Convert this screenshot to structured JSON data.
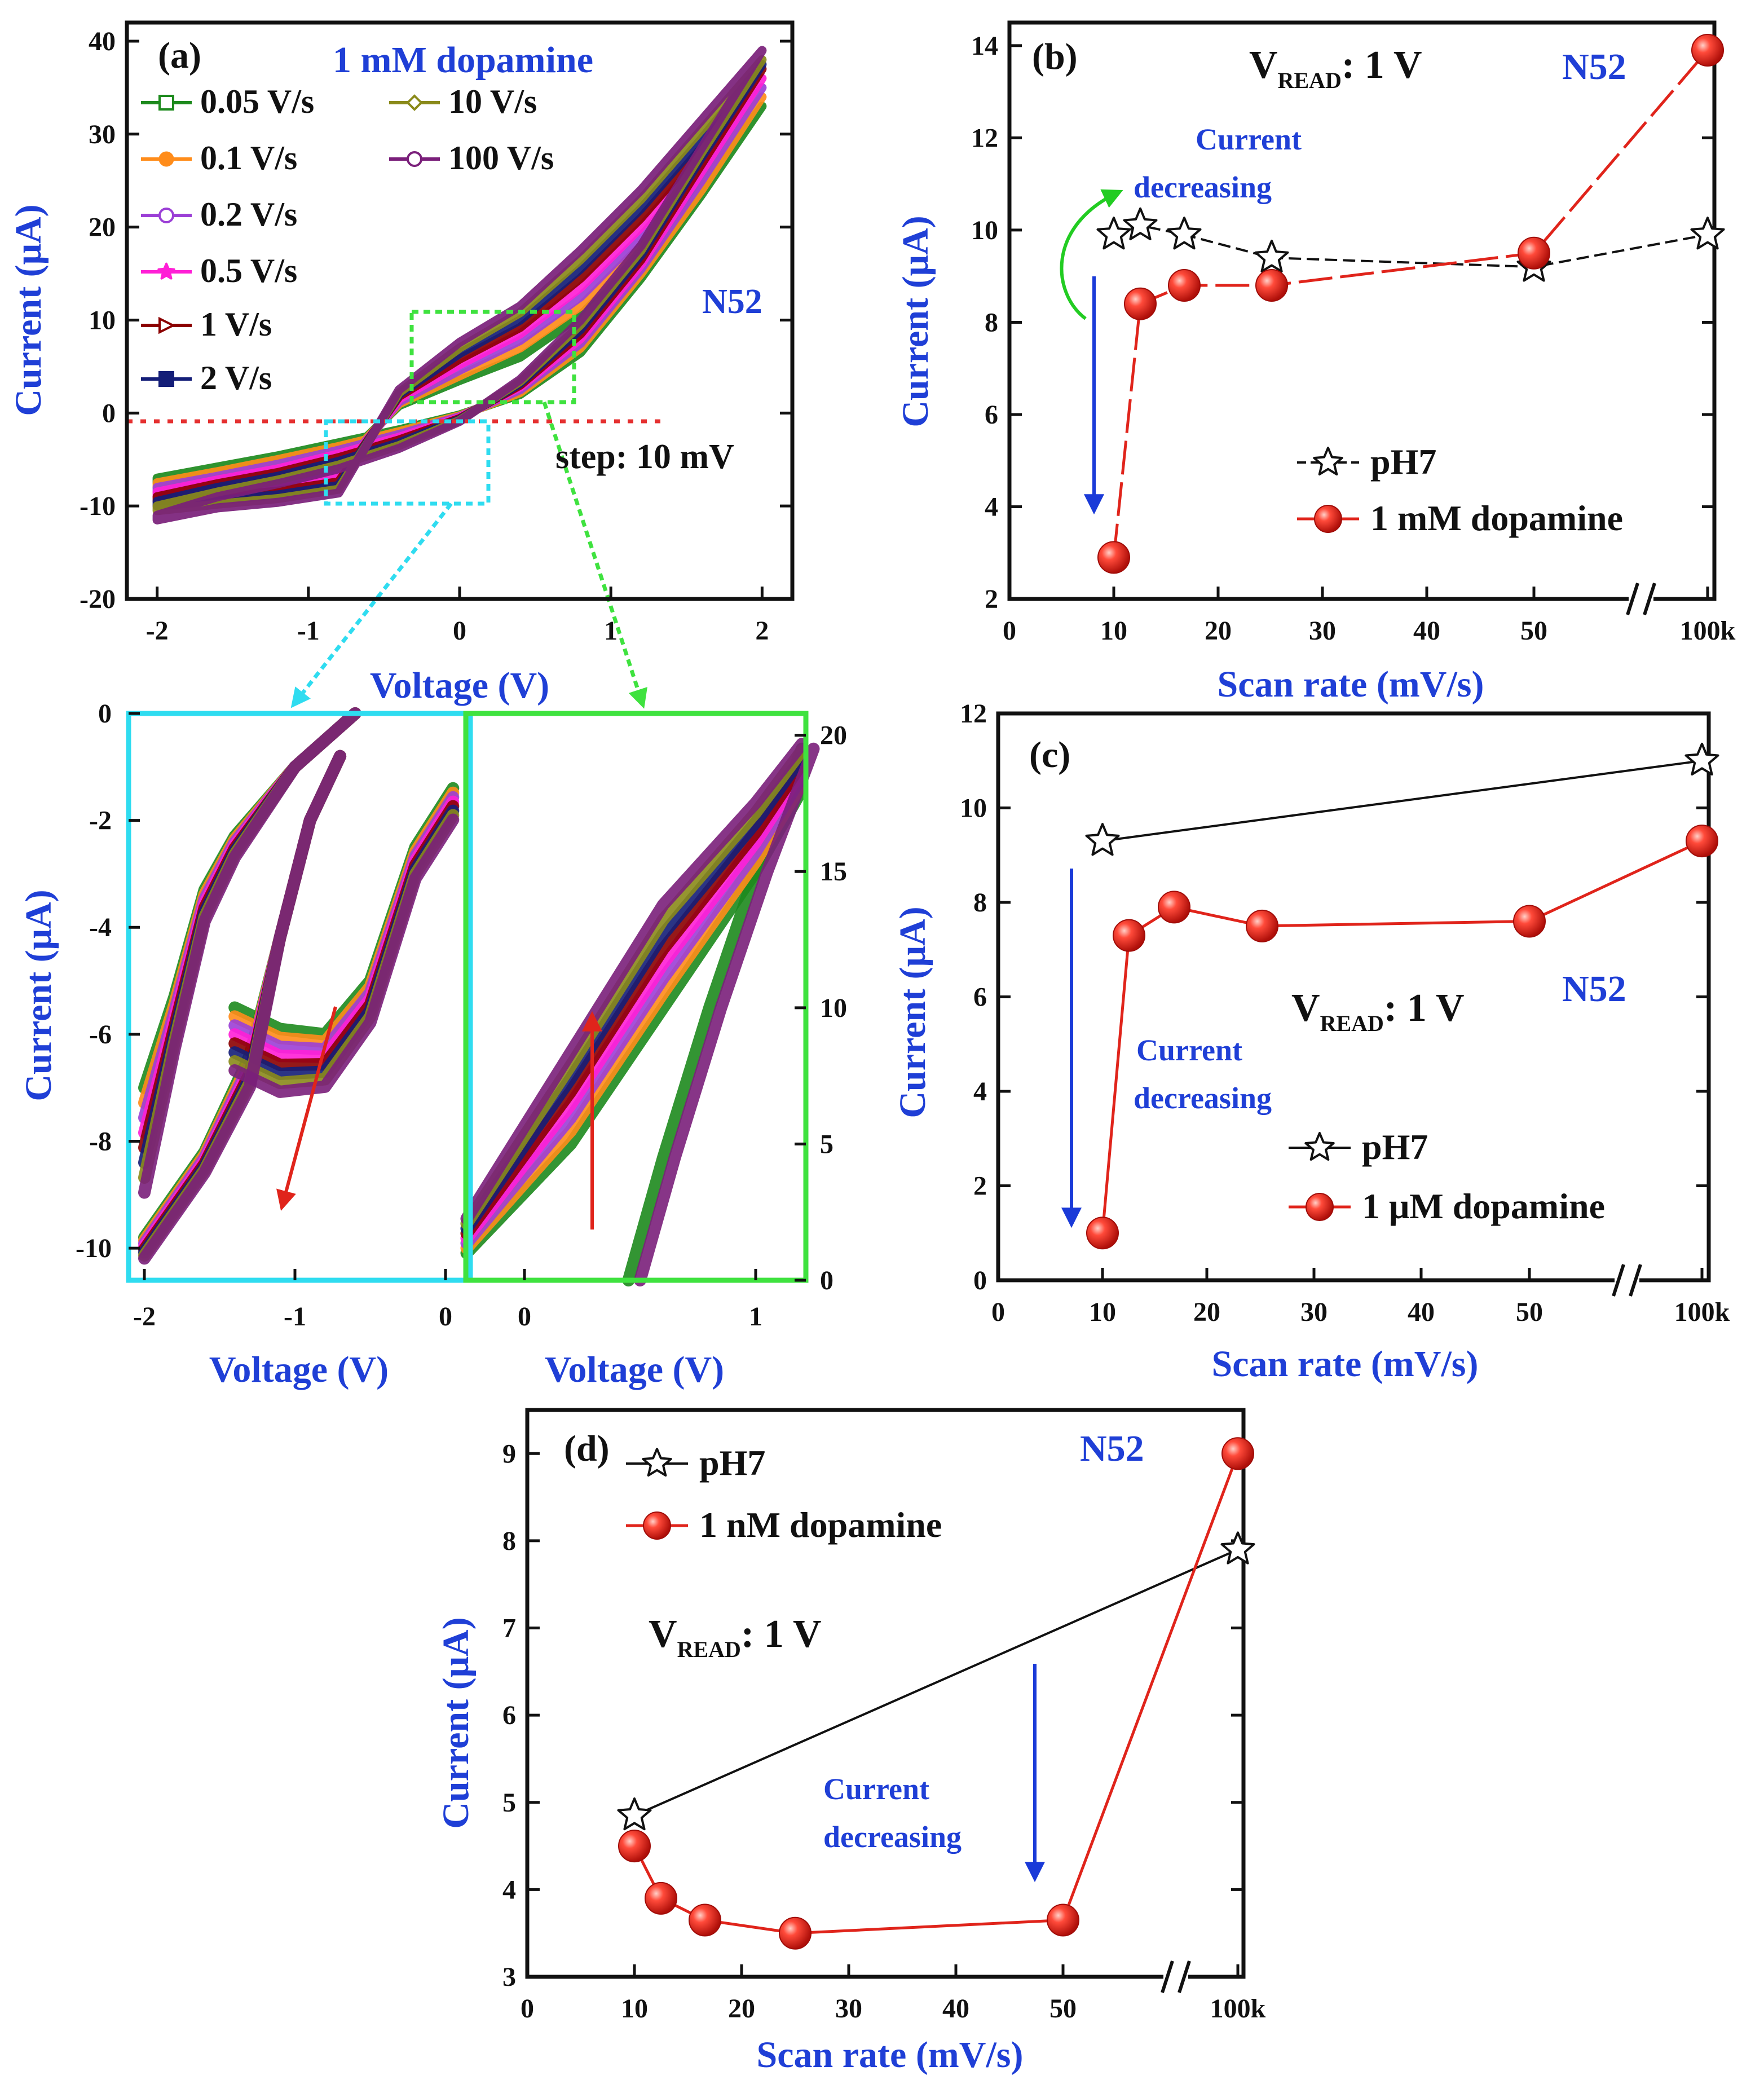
{
  "colors": {
    "axis_label": "#1f3fd6",
    "panel_text": "#1f3fd6",
    "black_series": "#111111",
    "red_series": "#e0241b",
    "arrow_blue": "#1a3ad8",
    "arrow_green": "#22cc22",
    "arrow_red": "#e0241b",
    "zoom_cyan": "#2fdcf0",
    "zoom_green": "#3fe23f",
    "zero_line": "#e53030"
  },
  "panel_a": {
    "label": "(a)",
    "title": "1 mM dopamine",
    "sample": "N52",
    "step": "step: 10 mV",
    "xlabel": "Voltage (V)",
    "ylabel": "Current (μA)",
    "xticks": [
      "-2",
      "-1",
      "0",
      "1",
      "2"
    ],
    "yticks": [
      "-20",
      "-10",
      "0",
      "10",
      "20",
      "30",
      "40"
    ],
    "legend": [
      {
        "name": "0.05 V/s",
        "color": "#1d8a1d",
        "marker": "square"
      },
      {
        "name": "0.1 V/s",
        "color": "#ff8c1a",
        "marker": "circle-filled"
      },
      {
        "name": "0.2 V/s",
        "color": "#9b3fd6",
        "marker": "circle-open"
      },
      {
        "name": "0.5 V/s",
        "color": "#ff1fd6",
        "marker": "star"
      },
      {
        "name": "1 V/s",
        "color": "#8b0000",
        "marker": "triangle"
      },
      {
        "name": "2 V/s",
        "color": "#141e78",
        "marker": "square-filled"
      },
      {
        "name": "10 V/s",
        "color": "#8a8a1a",
        "marker": "diamond"
      },
      {
        "name": "100 V/s",
        "color": "#7a1f7a",
        "marker": "circle-open"
      }
    ]
  },
  "zoom_left": {
    "xlabel": "Voltage (V)",
    "ylabel": "Current (μA)",
    "xticks": [
      "-2",
      "-1",
      "0"
    ],
    "yticks": [
      "0",
      "-2",
      "-4",
      "-6",
      "-8",
      "-10"
    ]
  },
  "zoom_right": {
    "xlabel": "Voltage (V)",
    "xticks": [
      "0",
      "1"
    ],
    "yticks": [
      "0",
      "5",
      "10",
      "15",
      "20"
    ]
  },
  "panel_b": {
    "label": "(b)",
    "vread": {
      "v": "V",
      "sub": "READ",
      "rest": ": 1 V"
    },
    "sample": "N52",
    "annotation": [
      "Current",
      "decreasing"
    ],
    "xlabel": "Scan rate (mV/s)",
    "ylabel": "Current (μA)",
    "xticks": [
      "0",
      "10",
      "20",
      "30",
      "40",
      "50",
      "100k"
    ],
    "yticks": [
      "2",
      "4",
      "6",
      "8",
      "10",
      "12",
      "14"
    ],
    "legend": [
      "pH7",
      "1 mM dopamine"
    ]
  },
  "panel_c": {
    "label": "(c)",
    "vread": {
      "v": "V",
      "sub": "READ",
      "rest": ": 1 V"
    },
    "sample": "N52",
    "annotation": [
      "Current",
      "decreasing"
    ],
    "xlabel": "Scan rate (mV/s)",
    "ylabel": "Current (μA)",
    "xticks": [
      "0",
      "10",
      "20",
      "30",
      "40",
      "50",
      "100k"
    ],
    "yticks": [
      "0",
      "2",
      "4",
      "6",
      "8",
      "10",
      "12"
    ],
    "legend": [
      "pH7",
      "1 μM dopamine"
    ]
  },
  "panel_d": {
    "label": "(d)",
    "vread": {
      "v": "V",
      "sub": "READ",
      "rest": ": 1 V"
    },
    "sample": "N52",
    "annotation": [
      "Current",
      "decreasing"
    ],
    "xlabel": "Scan rate (mV/s)",
    "ylabel": "Current (μA)",
    "xticks": [
      "0",
      "10",
      "20",
      "30",
      "40",
      "50",
      "100k"
    ],
    "yticks": [
      "3",
      "4",
      "5",
      "6",
      "7",
      "8",
      "9"
    ],
    "legend": [
      "pH7",
      "1 nM dopamine"
    ]
  },
  "chart_data": [
    {
      "panel": "a",
      "type": "line",
      "xlabel": "Voltage (V)",
      "ylabel": "Current (μA)",
      "xlim": [
        -2.2,
        2.2
      ],
      "ylim": [
        -20,
        42
      ],
      "series": [
        {
          "name": "0.05 V/s",
          "points": [
            [
              -2,
              -7
            ],
            [
              -1.6,
              -5.8
            ],
            [
              -1.2,
              -4.6
            ],
            [
              -0.8,
              -3.2
            ],
            [
              -0.4,
              -1.8
            ],
            [
              0,
              -0.2
            ],
            [
              0.4,
              2.0
            ],
            [
              0.8,
              6.5
            ],
            [
              1.2,
              14.5
            ],
            [
              1.6,
              23.5
            ],
            [
              2,
              33
            ],
            [
              1.6,
              24.5
            ],
            [
              1.2,
              17
            ],
            [
              0.8,
              10.5
            ],
            [
              0.4,
              6
            ],
            [
              0,
              3.5
            ],
            [
              -0.4,
              0.8
            ],
            [
              -0.8,
              -5.5
            ],
            [
              -1.2,
              -6.5
            ],
            [
              -1.6,
              -7
            ],
            [
              -2,
              -7.5
            ]
          ]
        },
        {
          "name": "0.1 V/s",
          "points": [
            [
              -2,
              -7.5
            ],
            [
              -1.6,
              -6.3
            ],
            [
              -1.2,
              -5
            ],
            [
              -0.8,
              -3.6
            ],
            [
              -0.4,
              -2
            ],
            [
              0,
              -0.3
            ],
            [
              0.4,
              2.2
            ],
            [
              0.8,
              7
            ],
            [
              1.2,
              15
            ],
            [
              1.6,
              24
            ],
            [
              2,
              34
            ],
            [
              1.6,
              25.5
            ],
            [
              1.2,
              18
            ],
            [
              0.8,
              11.5
            ],
            [
              0.4,
              7
            ],
            [
              0,
              4
            ],
            [
              -0.4,
              1
            ],
            [
              -0.8,
              -6
            ],
            [
              -1.2,
              -7
            ],
            [
              -1.6,
              -7.6
            ],
            [
              -2,
              -8
            ]
          ]
        },
        {
          "name": "0.2 V/s",
          "points": [
            [
              -2,
              -8
            ],
            [
              -1.6,
              -6.8
            ],
            [
              -1.2,
              -5.5
            ],
            [
              -0.8,
              -4
            ],
            [
              -0.4,
              -2.3
            ],
            [
              0,
              -0.4
            ],
            [
              0.4,
              2.5
            ],
            [
              0.8,
              7.5
            ],
            [
              1.2,
              15.5
            ],
            [
              1.6,
              25
            ],
            [
              2,
              35
            ],
            [
              1.6,
              26.5
            ],
            [
              1.2,
              19
            ],
            [
              0.8,
              12.5
            ],
            [
              0.4,
              7.8
            ],
            [
              0,
              4.6
            ],
            [
              -0.4,
              1.2
            ],
            [
              -0.8,
              -6.5
            ],
            [
              -1.2,
              -7.5
            ],
            [
              -1.6,
              -8
            ],
            [
              -2,
              -8.5
            ]
          ]
        },
        {
          "name": "0.5 V/s",
          "points": [
            [
              -2,
              -8.5
            ],
            [
              -1.6,
              -7.2
            ],
            [
              -1.2,
              -6
            ],
            [
              -0.8,
              -4.4
            ],
            [
              -0.4,
              -2.6
            ],
            [
              0,
              -0.5
            ],
            [
              0.4,
              2.8
            ],
            [
              0.8,
              8
            ],
            [
              1.2,
              16
            ],
            [
              1.6,
              26
            ],
            [
              2,
              36
            ],
            [
              1.6,
              27.5
            ],
            [
              1.2,
              20
            ],
            [
              0.8,
              13.5
            ],
            [
              0.4,
              8.5
            ],
            [
              0,
              5.2
            ],
            [
              -0.4,
              1.5
            ],
            [
              -0.8,
              -7
            ],
            [
              -1.2,
              -8
            ],
            [
              -1.6,
              -8.5
            ],
            [
              -2,
              -9
            ]
          ]
        },
        {
          "name": "1 V/s",
          "points": [
            [
              -2,
              -9
            ],
            [
              -1.6,
              -7.6
            ],
            [
              -1.2,
              -6.4
            ],
            [
              -0.8,
              -4.8
            ],
            [
              -0.4,
              -2.9
            ],
            [
              0,
              -0.6
            ],
            [
              0.4,
              3
            ],
            [
              0.8,
              8.5
            ],
            [
              1.2,
              16.5
            ],
            [
              1.6,
              26.8
            ],
            [
              2,
              37
            ],
            [
              1.6,
              28.5
            ],
            [
              1.2,
              21
            ],
            [
              0.8,
              14.5
            ],
            [
              0.4,
              9.2
            ],
            [
              0,
              5.8
            ],
            [
              -0.4,
              1.8
            ],
            [
              -0.8,
              -7.4
            ],
            [
              -1.2,
              -8.4
            ],
            [
              -1.6,
              -9
            ],
            [
              -2,
              -9.5
            ]
          ]
        },
        {
          "name": "2 V/s",
          "points": [
            [
              -2,
              -9.5
            ],
            [
              -1.6,
              -8
            ],
            [
              -1.2,
              -6.8
            ],
            [
              -0.8,
              -5.2
            ],
            [
              -0.4,
              -3.2
            ],
            [
              0,
              -0.7
            ],
            [
              0.4,
              3.2
            ],
            [
              0.8,
              9
            ],
            [
              1.2,
              17
            ],
            [
              1.6,
              27.5
            ],
            [
              2,
              37.5
            ],
            [
              1.6,
              29.5
            ],
            [
              1.2,
              22
            ],
            [
              0.8,
              15.5
            ],
            [
              0.4,
              10
            ],
            [
              0,
              6.4
            ],
            [
              -0.4,
              2
            ],
            [
              -0.8,
              -7.8
            ],
            [
              -1.2,
              -8.8
            ],
            [
              -1.6,
              -9.4
            ],
            [
              -2,
              -10
            ]
          ]
        },
        {
          "name": "10 V/s",
          "points": [
            [
              -2,
              -10
            ],
            [
              -1.6,
              -8.5
            ],
            [
              -1.2,
              -7.2
            ],
            [
              -0.8,
              -5.6
            ],
            [
              -0.4,
              -3.5
            ],
            [
              0,
              -0.8
            ],
            [
              0.4,
              3.4
            ],
            [
              0.8,
              9.5
            ],
            [
              1.2,
              17.5
            ],
            [
              1.6,
              28
            ],
            [
              2,
              38
            ],
            [
              1.6,
              30.5
            ],
            [
              1.2,
              23
            ],
            [
              0.8,
              16.5
            ],
            [
              0.4,
              10.8
            ],
            [
              0,
              7
            ],
            [
              -0.4,
              2.2
            ],
            [
              -0.8,
              -8.2
            ],
            [
              -1.2,
              -9.2
            ],
            [
              -1.6,
              -9.8
            ],
            [
              -2,
              -10.5
            ]
          ]
        },
        {
          "name": "100 V/s",
          "points": [
            [
              -2,
              -11
            ],
            [
              -1.6,
              -9
            ],
            [
              -1.2,
              -7.6
            ],
            [
              -0.8,
              -6
            ],
            [
              -0.4,
              -3.8
            ],
            [
              0,
              -0.9
            ],
            [
              0.4,
              3.6
            ],
            [
              0.8,
              10
            ],
            [
              1.2,
              18
            ],
            [
              1.6,
              28.5
            ],
            [
              2,
              39
            ],
            [
              1.6,
              31.5
            ],
            [
              1.2,
              24
            ],
            [
              0.8,
              17.5
            ],
            [
              0.4,
              11.5
            ],
            [
              0,
              7.6
            ],
            [
              -0.4,
              2.5
            ],
            [
              -0.8,
              -8.6
            ],
            [
              -1.2,
              -9.6
            ],
            [
              -1.6,
              -10.2
            ],
            [
              -2,
              -11.5
            ]
          ]
        }
      ]
    },
    {
      "panel": "b",
      "type": "line",
      "xlabel": "Scan rate (mV/s)",
      "ylabel": "Current (μA)",
      "ylim": [
        2,
        14.5
      ],
      "series": [
        {
          "name": "pH7",
          "x": [
            "10",
            "12.5",
            "16.7",
            "25",
            "50",
            "100k"
          ],
          "values": [
            9.9,
            10.1,
            9.9,
            9.4,
            9.2,
            9.9
          ]
        },
        {
          "name": "1 mM dopamine",
          "x": [
            "10",
            "12.5",
            "16.7",
            "25",
            "50",
            "100k"
          ],
          "values": [
            2.9,
            8.4,
            8.8,
            8.8,
            9.5,
            13.9
          ]
        }
      ]
    },
    {
      "panel": "c",
      "type": "line",
      "xlabel": "Scan rate (mV/s)",
      "ylabel": "Current (μA)",
      "ylim": [
        0,
        12
      ],
      "series": [
        {
          "name": "pH7",
          "x": [
            "10",
            "100k"
          ],
          "values": [
            9.3,
            11.0
          ]
        },
        {
          "name": "1 μM dopamine",
          "x": [
            "10",
            "12.5",
            "16.7",
            "25",
            "50",
            "100k"
          ],
          "values": [
            1.0,
            7.3,
            7.9,
            7.5,
            7.6,
            9.3
          ]
        }
      ]
    },
    {
      "panel": "d",
      "type": "line",
      "xlabel": "Scan rate (mV/s)",
      "ylabel": "Current (μA)",
      "ylim": [
        3,
        9.5
      ],
      "series": [
        {
          "name": "pH7",
          "x": [
            "10",
            "100k"
          ],
          "values": [
            4.85,
            7.9
          ]
        },
        {
          "name": "1 nM dopamine",
          "x": [
            "10",
            "12.5",
            "16.7",
            "25",
            "50",
            "100k"
          ],
          "values": [
            4.5,
            3.9,
            3.65,
            3.5,
            3.65,
            9.0
          ]
        }
      ]
    }
  ]
}
